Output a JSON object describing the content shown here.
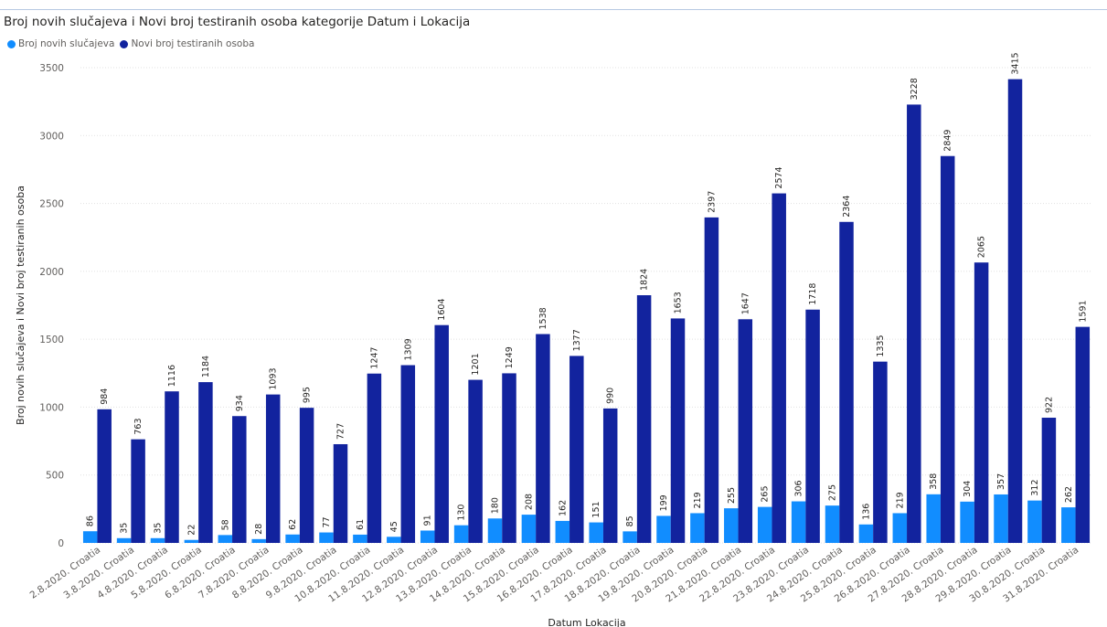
{
  "chart_data": {
    "type": "bar",
    "title": "Broj novih slučajeva i Novi broj testiranih osoba kategorije Datum i Lokacija",
    "xlabel": "Datum Lokacija",
    "ylabel": "Broj novih slučajeva i Novi broj testiranih osoba",
    "ylim": [
      0,
      3500
    ],
    "yticks": [
      "0",
      "500",
      "1000",
      "1500",
      "2000",
      "2500",
      "3000",
      "3500"
    ],
    "legend_position": "top-left",
    "grid": true,
    "categories": [
      "2.8.2020. Croatia",
      "3.8.2020. Croatia",
      "4.8.2020. Croatia",
      "5.8.2020. Croatia",
      "6.8.2020. Croatia",
      "7.8.2020. Croatia",
      "8.8.2020. Croatia",
      "9.8.2020. Croatia",
      "10.8.2020. Croatia",
      "11.8.2020. Croatia",
      "12.8.2020. Croatia",
      "13.8.2020. Croatia",
      "14.8.2020. Croatia",
      "15.8.2020. Croatia",
      "16.8.2020. Croatia",
      "17.8.2020. Croatia",
      "18.8.2020. Croatia",
      "19.8.2020. Croatia",
      "20.8.2020. Croatia",
      "21.8.2020. Croatia",
      "22.8.2020. Croatia",
      "23.8.2020. Croatia",
      "24.8.2020. Croatia",
      "25.8.2020. Croatia",
      "26.8.2020. Croatia",
      "27.8.2020. Croatia",
      "28.8.2020. Croatia",
      "29.8.2020. Croatia",
      "30.8.2020. Croatia",
      "31.8.2020. Croatia"
    ],
    "series": [
      {
        "name": "Broj novih slučajeva",
        "color": "#118dff",
        "values": [
          86,
          35,
          35,
          22,
          58,
          28,
          62,
          77,
          61,
          45,
          91,
          130,
          180,
          208,
          162,
          151,
          85,
          199,
          219,
          255,
          265,
          306,
          275,
          136,
          219,
          358,
          304,
          357,
          312,
          262
        ]
      },
      {
        "name": "Novi broj testiranih osoba",
        "color": "#12239e",
        "values": [
          984,
          763,
          1116,
          1184,
          934,
          1093,
          995,
          727,
          1247,
          1309,
          1604,
          1201,
          1249,
          1538,
          1377,
          990,
          1824,
          1653,
          2397,
          1647,
          2574,
          1718,
          2364,
          1335,
          3228,
          2849,
          2065,
          3415,
          922,
          1591
        ]
      }
    ]
  }
}
